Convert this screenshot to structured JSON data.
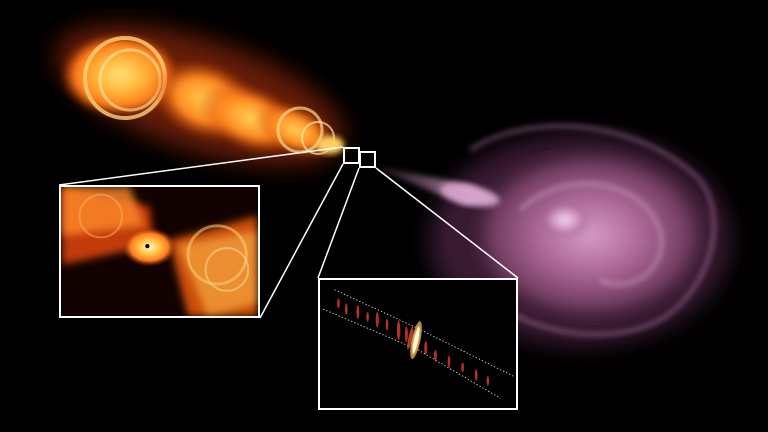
{
  "image": {
    "subject": "astronomical-jet-composite",
    "colors": {
      "background": "#000000",
      "jet_left_core": "#ffd24a",
      "jet_left_mid": "#ff8a1e",
      "jet_left_edge": "#d8400c",
      "lobe_right": "#b06a9a",
      "lobe_right_highlight": "#e2b6d6",
      "frame": "#ffffff"
    }
  }
}
